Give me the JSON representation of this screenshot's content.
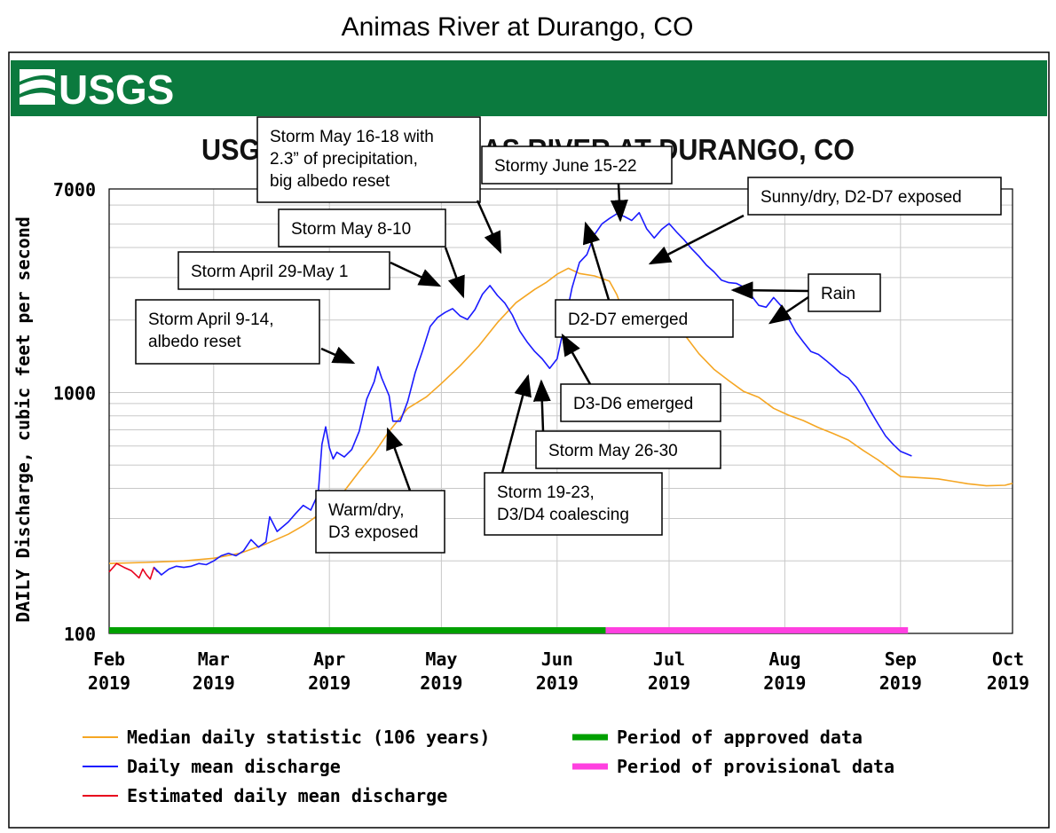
{
  "page_title": "Animas River at Durango, CO",
  "header": {
    "logo_text": "USGS",
    "colors": {
      "band": "#0b7a3e",
      "logo": "#ffffff"
    }
  },
  "chart_data": {
    "type": "line",
    "title": "USGS 09361500 ANIMAS RIVER AT DURANGO, CO",
    "ylabel": "DAILY Discharge, cubic feet per second",
    "xlabel": "",
    "y_scale": "log",
    "ylim": [
      100,
      7000
    ],
    "y_tick_labels": [
      {
        "value": 7000,
        "label": "7000"
      },
      {
        "value": 1000,
        "label": "1000"
      },
      {
        "value": 100,
        "label": "100"
      }
    ],
    "x_ticks": [
      {
        "month": "Feb",
        "year": "2019",
        "day": 0
      },
      {
        "month": "Mar",
        "year": "2019",
        "day": 28
      },
      {
        "month": "Apr",
        "year": "2019",
        "day": 59
      },
      {
        "month": "May",
        "year": "2019",
        "day": 89
      },
      {
        "month": "Jun",
        "year": "2019",
        "day": 120
      },
      {
        "month": "Jul",
        "year": "2019",
        "day": 150
      },
      {
        "month": "Aug",
        "year": "2019",
        "day": 181
      },
      {
        "month": "Sep",
        "year": "2019",
        "day": 212
      },
      {
        "month": "Oct",
        "year": "2019",
        "day": 242
      }
    ],
    "series": [
      {
        "name": "Median daily statistic (106 years)",
        "color": "#f5a623",
        "points": [
          [
            0,
            195
          ],
          [
            10,
            197
          ],
          [
            20,
            200
          ],
          [
            28,
            205
          ],
          [
            35,
            215
          ],
          [
            42,
            235
          ],
          [
            48,
            258
          ],
          [
            52,
            280
          ],
          [
            56,
            310
          ],
          [
            59,
            330
          ],
          [
            63,
            390
          ],
          [
            67,
            470
          ],
          [
            71,
            560
          ],
          [
            75,
            690
          ],
          [
            80,
            860
          ],
          [
            85,
            960
          ],
          [
            89,
            1090
          ],
          [
            94,
            1290
          ],
          [
            99,
            1560
          ],
          [
            104,
            1950
          ],
          [
            109,
            2360
          ],
          [
            114,
            2680
          ],
          [
            117,
            2860
          ],
          [
            120,
            3100
          ],
          [
            123,
            3280
          ],
          [
            126,
            3120
          ],
          [
            130,
            3050
          ],
          [
            134,
            2900
          ],
          [
            136,
            2550
          ],
          [
            138,
            2100
          ],
          [
            142,
            2000
          ],
          [
            146,
            1960
          ],
          [
            150,
            1950
          ],
          [
            154,
            1750
          ],
          [
            158,
            1450
          ],
          [
            162,
            1250
          ],
          [
            166,
            1120
          ],
          [
            170,
            1010
          ],
          [
            174,
            955
          ],
          [
            178,
            860
          ],
          [
            182,
            805
          ],
          [
            186,
            765
          ],
          [
            190,
            715
          ],
          [
            194,
            675
          ],
          [
            198,
            635
          ],
          [
            202,
            575
          ],
          [
            206,
            525
          ],
          [
            212,
            448
          ],
          [
            218,
            442
          ],
          [
            222,
            438
          ],
          [
            226,
            428
          ],
          [
            230,
            418
          ],
          [
            235,
            410
          ],
          [
            240,
            412
          ],
          [
            242,
            420
          ]
        ]
      },
      {
        "name": "Daily mean discharge",
        "color": "#1a1aff",
        "points": [
          [
            12,
            188
          ],
          [
            14,
            175
          ],
          [
            16,
            185
          ],
          [
            18,
            190
          ],
          [
            20,
            188
          ],
          [
            22,
            190
          ],
          [
            24,
            195
          ],
          [
            26,
            193
          ],
          [
            28,
            200
          ],
          [
            30,
            210
          ],
          [
            32,
            215
          ],
          [
            34,
            210
          ],
          [
            36,
            220
          ],
          [
            38,
            245
          ],
          [
            40,
            228
          ],
          [
            42,
            240
          ],
          [
            43,
            305
          ],
          [
            45,
            265
          ],
          [
            48,
            290
          ],
          [
            50,
            315
          ],
          [
            52,
            340
          ],
          [
            54,
            325
          ],
          [
            56,
            380
          ],
          [
            57,
            610
          ],
          [
            58,
            720
          ],
          [
            59,
            590
          ],
          [
            60,
            530
          ],
          [
            61,
            565
          ],
          [
            63,
            540
          ],
          [
            65,
            580
          ],
          [
            67,
            690
          ],
          [
            69,
            940
          ],
          [
            71,
            1110
          ],
          [
            72,
            1280
          ],
          [
            73,
            1150
          ],
          [
            75,
            970
          ],
          [
            76,
            760
          ],
          [
            78,
            760
          ],
          [
            80,
            920
          ],
          [
            82,
            1210
          ],
          [
            84,
            1500
          ],
          [
            86,
            1880
          ],
          [
            88,
            2050
          ],
          [
            90,
            2150
          ],
          [
            92,
            2230
          ],
          [
            94,
            2080
          ],
          [
            96,
            2010
          ],
          [
            98,
            2210
          ],
          [
            100,
            2560
          ],
          [
            102,
            2780
          ],
          [
            104,
            2530
          ],
          [
            106,
            2350
          ],
          [
            108,
            2100
          ],
          [
            110,
            1800
          ],
          [
            112,
            1620
          ],
          [
            114,
            1480
          ],
          [
            116,
            1380
          ],
          [
            118,
            1260
          ],
          [
            120,
            1380
          ],
          [
            122,
            1920
          ],
          [
            124,
            2720
          ],
          [
            126,
            3470
          ],
          [
            128,
            3740
          ],
          [
            130,
            4520
          ],
          [
            132,
            5010
          ],
          [
            134,
            5280
          ],
          [
            136,
            5520
          ],
          [
            138,
            5380
          ],
          [
            140,
            5180
          ],
          [
            142,
            5580
          ],
          [
            144,
            4780
          ],
          [
            146,
            4380
          ],
          [
            148,
            4760
          ],
          [
            150,
            5030
          ],
          [
            152,
            4640
          ],
          [
            154,
            4310
          ],
          [
            156,
            3960
          ],
          [
            158,
            3680
          ],
          [
            160,
            3380
          ],
          [
            162,
            3170
          ],
          [
            164,
            2930
          ],
          [
            166,
            2860
          ],
          [
            168,
            2840
          ],
          [
            170,
            2740
          ],
          [
            172,
            2530
          ],
          [
            174,
            2300
          ],
          [
            176,
            2260
          ],
          [
            178,
            2480
          ],
          [
            180,
            2290
          ],
          [
            182,
            2030
          ],
          [
            184,
            1780
          ],
          [
            186,
            1620
          ],
          [
            188,
            1480
          ],
          [
            190,
            1440
          ],
          [
            192,
            1360
          ],
          [
            194,
            1280
          ],
          [
            196,
            1200
          ],
          [
            198,
            1150
          ],
          [
            200,
            1060
          ],
          [
            202,
            950
          ],
          [
            204,
            835
          ],
          [
            206,
            740
          ],
          [
            208,
            660
          ],
          [
            210,
            610
          ],
          [
            212,
            570
          ],
          [
            215,
            545
          ]
        ]
      },
      {
        "name": "Estimated daily mean discharge",
        "color": "#e8001c",
        "points": [
          [
            0,
            180
          ],
          [
            2,
            195
          ],
          [
            4,
            188
          ],
          [
            6,
            182
          ],
          [
            8,
            170
          ],
          [
            9,
            185
          ],
          [
            10,
            175
          ],
          [
            11,
            168
          ],
          [
            12,
            188
          ],
          [
            13,
            180
          ]
        ]
      }
    ],
    "periods": [
      {
        "name": "Period of approved data",
        "color": "#00a000",
        "start_day": 0,
        "end_day": 133
      },
      {
        "name": "Period of provisional data",
        "color": "#ff40e0",
        "start_day": 133,
        "end_day": 214
      }
    ],
    "legend_position": "bottom",
    "annotations": [
      {
        "lines": [
          "Storm May 16-18 with",
          "2.3” of precipitation,",
          "big albedo reset"
        ]
      },
      {
        "lines": [
          "Stormy June 15-22"
        ]
      },
      {
        "lines": [
          "Sunny/dry, D2-D7 exposed"
        ]
      },
      {
        "lines": [
          "Storm May 8-10"
        ]
      },
      {
        "lines": [
          "Storm April 29-May 1"
        ]
      },
      {
        "lines": [
          "Storm April 9-14,",
          "albedo reset"
        ]
      },
      {
        "lines": [
          "Rain"
        ]
      },
      {
        "lines": [
          "D2-D7 emerged"
        ]
      },
      {
        "lines": [
          "D3-D6 emerged"
        ]
      },
      {
        "lines": [
          "Storm May 26-30"
        ]
      },
      {
        "lines": [
          "Storm 19-23,",
          "D3/D4 coalescing"
        ]
      },
      {
        "lines": [
          "Warm/dry,",
          "D3 exposed"
        ]
      }
    ]
  }
}
